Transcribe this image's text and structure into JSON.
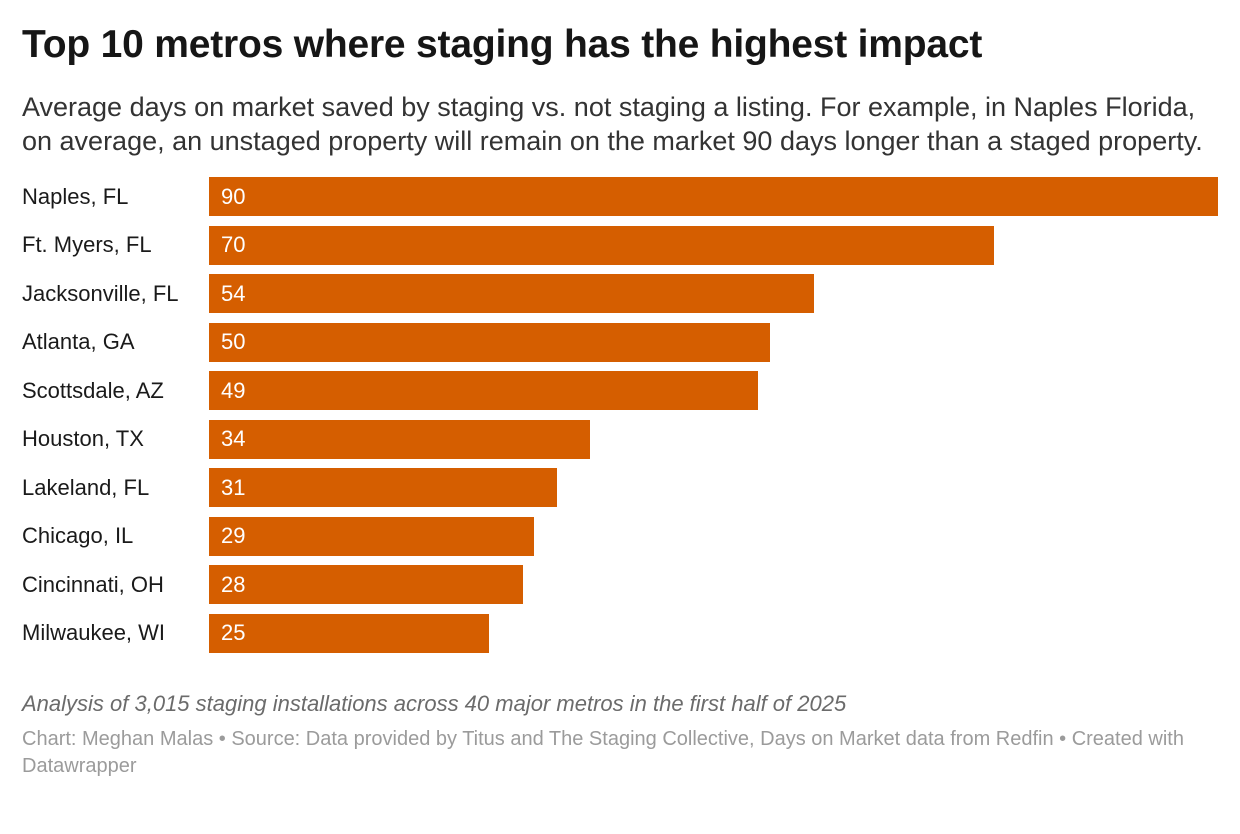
{
  "header": {
    "title": "Top 10 metros where staging has the highest impact",
    "subtitle": "Average days on market saved by staging vs. not staging a listing. For example, in Naples Florida, on average, an unstaged property will remain on the market 90 days longer than a staged property."
  },
  "chart_data": {
    "type": "bar",
    "orientation": "horizontal",
    "categories": [
      "Naples, FL",
      "Ft. Myers, FL",
      "Jacksonville, FL",
      "Atlanta, GA",
      "Scottsdale, AZ",
      "Houston, TX",
      "Lakeland, FL",
      "Chicago, IL",
      "Cincinnati, OH",
      "Milwaukee, WI"
    ],
    "values": [
      90,
      70,
      54,
      50,
      49,
      34,
      31,
      29,
      28,
      25
    ],
    "xlim": [
      0,
      90
    ],
    "value_label_position": "inside-start",
    "grid": false,
    "legend": false,
    "axis_labels_visible": false
  },
  "colors": {
    "bar": "#d55e00",
    "value_label": "#ffffff",
    "title": "#161616",
    "subtitle": "#333333",
    "category_label": "#1a1a1a",
    "note": "#6b6b6b",
    "credit": "#9b9b9b",
    "background": "#ffffff"
  },
  "footer": {
    "note": "Analysis of 3,015 staging installations across 40 major metros in the first half of 2025",
    "credit": "Chart: Meghan Malas • Source: Data provided by Titus and The Staging Collective, Days on Market data from Redfin • Created with Datawrapper"
  }
}
